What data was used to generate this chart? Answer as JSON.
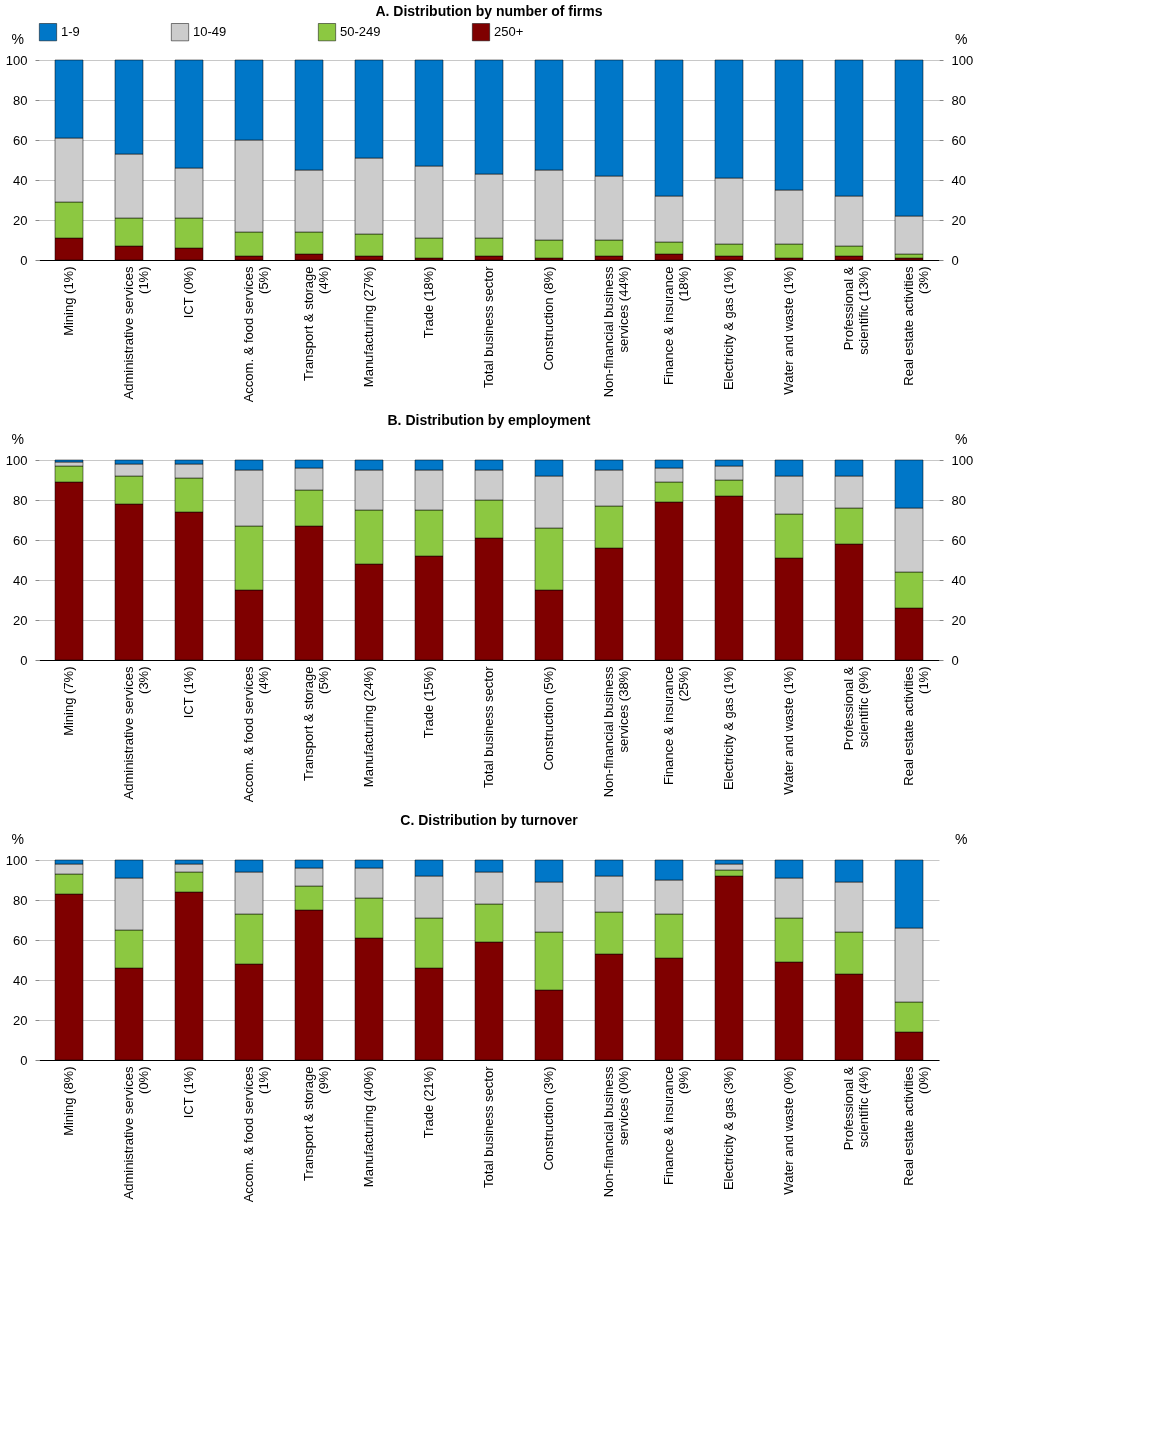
{
  "chart_data": [
    {
      "type": "bar",
      "stacked": true,
      "title": "A. Distribution by number of firms",
      "ylabel": "%",
      "y2label": "%",
      "ylim": [
        0,
        100
      ],
      "yticks": [
        0,
        20,
        40,
        60,
        80,
        100
      ],
      "y2lim": [
        0,
        100
      ],
      "y2ticks": [
        0,
        20,
        40,
        60,
        80,
        100
      ],
      "grid": "y",
      "legend": "top",
      "categories": [
        "Mining (1%)",
        "Administrative services (1%)",
        "ICT (0%)",
        "Accom. & food services (5%)",
        "Transport & storage (4%)",
        "Manufacturing (27%)",
        "Trade (18%)",
        "Total business sector",
        "Construction (8%)",
        "Non-financial business services (44%)",
        "Finance & insurance (18%)",
        "Electricity & gas (1%)",
        "Water and waste (1%)",
        "Professional & scientific (13%)",
        "Real estate activities (3%)"
      ],
      "series": [
        {
          "name": "250+",
          "color": "#7f0000",
          "values": [
            11,
            7,
            6,
            2,
            3,
            2,
            1,
            2,
            1,
            2,
            3,
            2,
            1,
            2,
            1
          ]
        },
        {
          "name": "50-249",
          "color": "#8cc841",
          "values": [
            18,
            14,
            15,
            12,
            11,
            11,
            10,
            9,
            9,
            8,
            6,
            6,
            7,
            5,
            2
          ]
        },
        {
          "name": "10-49",
          "color": "#cccccc",
          "values": [
            32,
            32,
            25,
            46,
            31,
            38,
            36,
            32,
            35,
            32,
            23,
            33,
            27,
            25,
            19
          ]
        },
        {
          "name": "1-9",
          "color": "#0077c8",
          "values": [
            39,
            47,
            54,
            40,
            55,
            49,
            53,
            57,
            55,
            58,
            68,
            59,
            65,
            68,
            78
          ]
        }
      ]
    },
    {
      "type": "bar",
      "stacked": true,
      "title": "B. Distribution by employment",
      "ylabel": "%",
      "y2label": "%",
      "ylim": [
        0,
        100
      ],
      "yticks": [
        0,
        20,
        40,
        60,
        80,
        100
      ],
      "y2lim": [
        0,
        100
      ],
      "y2ticks": [
        0,
        20,
        40,
        60,
        80,
        100
      ],
      "grid": "y",
      "categories": [
        "Mining (7%)",
        "Administrative services (3%)",
        "ICT (1%)",
        "Accom. & food services (4%)",
        "Transport & storage (5%)",
        "Manufacturing (24%)",
        "Trade (15%)",
        "Total business sector",
        "Construction (5%)",
        "Non-financial business services (38%)",
        "Finance & insurance (25%)",
        "Electricity & gas (1%)",
        "Water and waste (1%)",
        "Professional & scientific (9%)",
        "Real estate activities (1%)"
      ],
      "series": [
        {
          "color": "#7f0000",
          "values": [
            89,
            78,
            74,
            35,
            67,
            48,
            52,
            61,
            35,
            56,
            79,
            82,
            51,
            58,
            26
          ]
        },
        {
          "color": "#8cc841",
          "values": [
            8,
            14,
            17,
            32,
            18,
            27,
            23,
            19,
            31,
            21,
            10,
            8,
            22,
            18,
            18
          ]
        },
        {
          "color": "#cccccc",
          "values": [
            2,
            6,
            7,
            28,
            11,
            20,
            20,
            15,
            26,
            18,
            7,
            7,
            19,
            16,
            32
          ]
        },
        {
          "color": "#0077c8",
          "values": [
            1,
            2,
            2,
            5,
            4,
            5,
            5,
            5,
            8,
            5,
            4,
            3,
            8,
            8,
            24
          ]
        }
      ]
    },
    {
      "type": "bar",
      "stacked": true,
      "title": "C. Distribution by turnover",
      "ylabel": "%",
      "y2label": "%",
      "ylim": [
        0,
        100
      ],
      "yticks": [
        0,
        20,
        40,
        60,
        80,
        100
      ],
      "grid": "y",
      "categories": [
        "Mining (8%)",
        "Administrative services (0%)",
        "ICT (1%)",
        "Accom. & food services (1%)",
        "Transport & storage (9%)",
        "Manufacturing (40%)",
        "Trade (21%)",
        "Total business sector",
        "Construction (3%)",
        "Non-financial business services (0%)",
        "Finance & insurance (9%)",
        "Electricity & gas (3%)",
        "Water and waste (0%)",
        "Professional & scientific (4%)",
        "Real estate activities (0%)"
      ],
      "series": [
        {
          "color": "#7f0000",
          "values": [
            83,
            46,
            84,
            48,
            75,
            61,
            46,
            59,
            35,
            53,
            51,
            92,
            49,
            43,
            14
          ]
        },
        {
          "color": "#8cc841",
          "values": [
            10,
            19,
            10,
            25,
            12,
            20,
            25,
            19,
            29,
            21,
            22,
            3,
            22,
            21,
            15
          ]
        },
        {
          "color": "#cccccc",
          "values": [
            5,
            26,
            4,
            21,
            9,
            15,
            21,
            16,
            25,
            18,
            17,
            3,
            20,
            25,
            37
          ]
        },
        {
          "color": "#0077c8",
          "values": [
            2,
            9,
            2,
            6,
            4,
            4,
            8,
            6,
            11,
            8,
            10,
            2,
            9,
            11,
            34
          ]
        }
      ]
    }
  ]
}
